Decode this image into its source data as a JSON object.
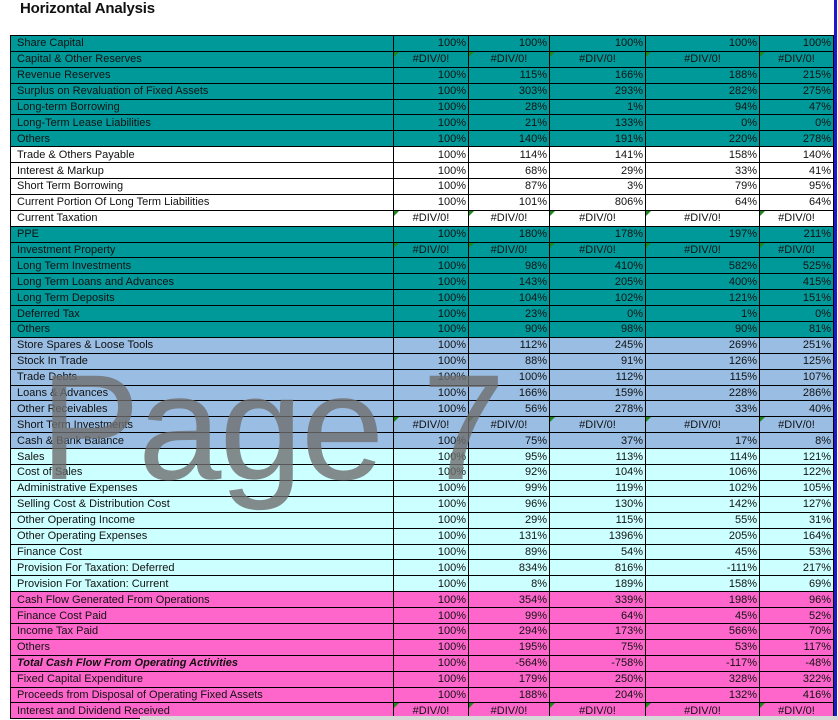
{
  "title": "Horizontal Analysis",
  "watermark": "Page 7",
  "band_colors": {
    "teal": "#009999",
    "white": "#ffffff",
    "blue": "#99bde3",
    "cyan": "#ccffff",
    "pink": "#ff66cc"
  },
  "rows": [
    {
      "label": "Share Capital",
      "band": "teal",
      "values": [
        "100%",
        "100%",
        "100%",
        "100%",
        "100%"
      ]
    },
    {
      "label": "Capital & Other Reserves",
      "band": "teal",
      "values": [
        "#DIV/0!",
        "#DIV/0!",
        "#DIV/0!",
        "#DIV/0!",
        "#DIV/0!"
      ]
    },
    {
      "label": "Revenue Reserves",
      "band": "teal",
      "values": [
        "100%",
        "115%",
        "166%",
        "188%",
        "215%"
      ]
    },
    {
      "label": "Surplus on Revaluation of Fixed Assets",
      "band": "teal",
      "values": [
        "100%",
        "303%",
        "293%",
        "282%",
        "275%"
      ]
    },
    {
      "label": "Long-term Borrowing",
      "band": "teal",
      "values": [
        "100%",
        "28%",
        "1%",
        "94%",
        "47%"
      ]
    },
    {
      "label": "Long-Term Lease Liabilities",
      "band": "teal",
      "values": [
        "100%",
        "21%",
        "133%",
        "0%",
        "0%"
      ]
    },
    {
      "label": "Others",
      "band": "teal",
      "values": [
        "100%",
        "140%",
        "191%",
        "220%",
        "278%"
      ]
    },
    {
      "label": "Trade & Others Payable",
      "band": "white",
      "values": [
        "100%",
        "114%",
        "141%",
        "158%",
        "140%"
      ]
    },
    {
      "label": "Interest & Markup",
      "band": "white",
      "values": [
        "100%",
        "68%",
        "29%",
        "33%",
        "41%"
      ]
    },
    {
      "label": "Short Term Borrowing",
      "band": "white",
      "values": [
        "100%",
        "87%",
        "3%",
        "79%",
        "95%"
      ]
    },
    {
      "label": "Current Portion Of Long Term Liabilities",
      "band": "white",
      "values": [
        "100%",
        "101%",
        "806%",
        "64%",
        "64%"
      ]
    },
    {
      "label": "Current Taxation",
      "band": "white",
      "values": [
        "#DIV/0!",
        "#DIV/0!",
        "#DIV/0!",
        "#DIV/0!",
        "#DIV/0!"
      ]
    },
    {
      "label": "PPE",
      "band": "teal",
      "values": [
        "100%",
        "180%",
        "178%",
        "197%",
        "211%"
      ]
    },
    {
      "label": "Investment Property",
      "band": "teal",
      "values": [
        "#DIV/0!",
        "#DIV/0!",
        "#DIV/0!",
        "#DIV/0!",
        "#DIV/0!"
      ]
    },
    {
      "label": "Long Term Investments",
      "band": "teal",
      "values": [
        "100%",
        "98%",
        "410%",
        "582%",
        "525%"
      ]
    },
    {
      "label": "Long Term Loans and Advances",
      "band": "teal",
      "values": [
        "100%",
        "143%",
        "205%",
        "400%",
        "415%"
      ]
    },
    {
      "label": "Long Term Deposits",
      "band": "teal",
      "values": [
        "100%",
        "104%",
        "102%",
        "121%",
        "151%"
      ]
    },
    {
      "label": "Deferred Tax",
      "band": "teal",
      "values": [
        "100%",
        "23%",
        "0%",
        "1%",
        "0%"
      ]
    },
    {
      "label": "Others",
      "band": "teal",
      "values": [
        "100%",
        "90%",
        "98%",
        "90%",
        "81%"
      ]
    },
    {
      "label": "Store Spares & Loose Tools",
      "band": "blue",
      "values": [
        "100%",
        "112%",
        "245%",
        "269%",
        "251%"
      ]
    },
    {
      "label": "Stock In Trade",
      "band": "blue",
      "values": [
        "100%",
        "88%",
        "91%",
        "126%",
        "125%"
      ]
    },
    {
      "label": "Trade Debts",
      "band": "blue",
      "values": [
        "100%",
        "100%",
        "112%",
        "115%",
        "107%"
      ]
    },
    {
      "label": "Loans & Advances",
      "band": "blue",
      "values": [
        "100%",
        "166%",
        "159%",
        "228%",
        "286%"
      ]
    },
    {
      "label": "Other Receivables",
      "band": "blue",
      "values": [
        "100%",
        "56%",
        "278%",
        "33%",
        "40%"
      ]
    },
    {
      "label": "Short Term Investments",
      "band": "blue",
      "values": [
        "#DIV/0!",
        "#DIV/0!",
        "#DIV/0!",
        "#DIV/0!",
        "#DIV/0!"
      ]
    },
    {
      "label": "Cash & Bank Balance",
      "band": "blue",
      "values": [
        "100%",
        "75%",
        "37%",
        "17%",
        "8%"
      ]
    },
    {
      "label": "Sales",
      "band": "cyan",
      "values": [
        "100%",
        "95%",
        "113%",
        "114%",
        "121%"
      ]
    },
    {
      "label": "Cost of Sales",
      "band": "cyan",
      "values": [
        "100%",
        "92%",
        "104%",
        "106%",
        "122%"
      ]
    },
    {
      "label": "Administrative Expenses",
      "band": "cyan",
      "values": [
        "100%",
        "99%",
        "119%",
        "102%",
        "105%"
      ]
    },
    {
      "label": "Selling Cost & Distribution Cost",
      "band": "cyan",
      "values": [
        "100%",
        "96%",
        "130%",
        "142%",
        "127%"
      ]
    },
    {
      "label": "Other Operating Income",
      "band": "cyan",
      "values": [
        "100%",
        "29%",
        "115%",
        "55%",
        "31%"
      ]
    },
    {
      "label": "Other Operating Expenses",
      "band": "cyan",
      "values": [
        "100%",
        "131%",
        "1396%",
        "205%",
        "164%"
      ]
    },
    {
      "label": "Finance Cost",
      "band": "cyan",
      "values": [
        "100%",
        "89%",
        "54%",
        "45%",
        "53%"
      ]
    },
    {
      "label": "Provision For Taxation: Deferred",
      "band": "cyan",
      "values": [
        "100%",
        "834%",
        "816%",
        "-111%",
        "217%"
      ]
    },
    {
      "label": "Provision For Taxation: Current",
      "band": "cyan",
      "values": [
        "100%",
        "8%",
        "189%",
        "158%",
        "69%"
      ]
    },
    {
      "label": "Cash Flow Generated From Operations",
      "band": "pink",
      "values": [
        "100%",
        "354%",
        "339%",
        "198%",
        "96%"
      ]
    },
    {
      "label": "Finance Cost Paid",
      "band": "pink",
      "values": [
        "100%",
        "99%",
        "64%",
        "45%",
        "52%"
      ]
    },
    {
      "label": "Income Tax Paid",
      "band": "pink",
      "values": [
        "100%",
        "294%",
        "173%",
        "566%",
        "70%"
      ]
    },
    {
      "label": "Others",
      "band": "pink",
      "values": [
        "100%",
        "195%",
        "75%",
        "53%",
        "117%"
      ]
    },
    {
      "label": "Total Cash Flow From Operating Activities",
      "band": "pink",
      "bold_italic": true,
      "values": [
        "100%",
        "-564%",
        "-758%",
        "-117%",
        "-48%"
      ]
    },
    {
      "label": "Fixed Capital Expenditure",
      "band": "pink",
      "values": [
        "100%",
        "179%",
        "250%",
        "328%",
        "322%"
      ]
    },
    {
      "label": "Proceeds from Disposal of Operating Fixed Assets",
      "band": "pink",
      "values": [
        "100%",
        "188%",
        "204%",
        "132%",
        "416%"
      ]
    },
    {
      "label": "Interest and Dividend Received",
      "band": "pink",
      "values": [
        "#DIV/0!",
        "#DIV/0!",
        "#DIV/0!",
        "#DIV/0!",
        "#DIV/0!"
      ]
    }
  ]
}
